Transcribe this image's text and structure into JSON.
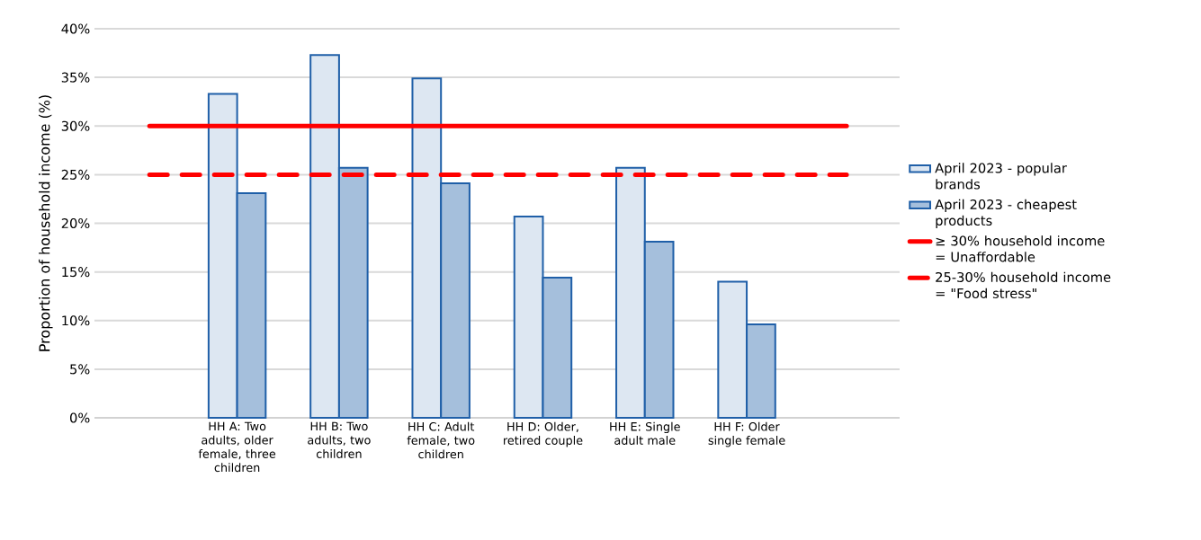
{
  "chart_data": {
    "type": "bar",
    "ylabel": "Proportion of household income (%)",
    "categories": [
      "HH A: Two adults, older female, three children",
      "HH B: Two adults, two children",
      "HH C: Adult female, two children",
      "HH D: Older, retired couple",
      "HH E: Single adult male",
      "HH F: Older single female"
    ],
    "series": [
      {
        "name": "April 2023 -  popular brands",
        "color": "#1f5fa8",
        "values": [
          33.3,
          37.3,
          34.9,
          20.7,
          25.7,
          14.0
        ]
      },
      {
        "name": "April 2023 - cheapest products",
        "color": "#1f5fa8",
        "values": [
          23.1,
          25.7,
          24.1,
          14.4,
          18.1,
          9.6
        ]
      }
    ],
    "ylim": [
      0,
      40
    ],
    "yticks": [
      {
        "value": 0,
        "label": "0%"
      },
      {
        "value": 5,
        "label": "5%"
      },
      {
        "value": 10,
        "label": "10%"
      },
      {
        "value": 15,
        "label": "15%"
      },
      {
        "value": 20,
        "label": "20%"
      },
      {
        "value": 25,
        "label": "25%"
      },
      {
        "value": 30,
        "label": "30%"
      },
      {
        "value": 35,
        "label": "35%"
      },
      {
        "value": 40,
        "label": "40%"
      }
    ],
    "ref_lines": [
      {
        "axis": "y",
        "value": 30,
        "label": "≥ 30% household income = Unaffordable",
        "color": "#ff0000",
        "line_style": "solid"
      },
      {
        "axis": "y",
        "value": 25,
        "label": "25-30% household income = \"Food stress\"",
        "color": "#ff0000",
        "line_style": "dashed"
      }
    ],
    "grid": "y",
    "legend": "right"
  }
}
